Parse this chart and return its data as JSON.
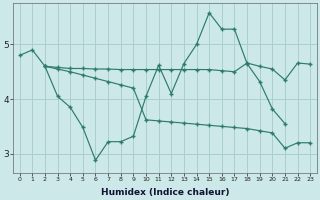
{
  "background_color": "#cce8e8",
  "grid_color": "#aacfcf",
  "line_color": "#2d7b6e",
  "line1_x": [
    0,
    1,
    2,
    3,
    4,
    5,
    6,
    7,
    8,
    9,
    10,
    11,
    12,
    13,
    14,
    15,
    16,
    17,
    18,
    19,
    20,
    21
  ],
  "line1_y": [
    4.8,
    4.9,
    4.6,
    4.05,
    3.85,
    3.48,
    2.88,
    3.22,
    3.22,
    3.32,
    4.05,
    4.62,
    4.1,
    4.65,
    5.0,
    5.58,
    5.28,
    5.28,
    4.65,
    4.32,
    3.82,
    3.55
  ],
  "line2_x": [
    2,
    3,
    4,
    5,
    6,
    7,
    8,
    9,
    10,
    11,
    12,
    13,
    14,
    15,
    16,
    17,
    18,
    19,
    20,
    21,
    22,
    23
  ],
  "line2_y": [
    4.6,
    4.58,
    4.56,
    4.56,
    4.55,
    4.55,
    4.54,
    4.54,
    4.54,
    4.54,
    4.54,
    4.54,
    4.54,
    4.54,
    4.52,
    4.5,
    4.66,
    4.6,
    4.55,
    4.35,
    4.66,
    4.64
  ],
  "line3_x": [
    2,
    3,
    4,
    5,
    6,
    7,
    8,
    9,
    10,
    11,
    12,
    13,
    14,
    15,
    16,
    17,
    18,
    19,
    20,
    21,
    22,
    23
  ],
  "line3_y": [
    4.6,
    4.55,
    4.5,
    4.44,
    4.38,
    4.32,
    4.26,
    4.2,
    3.62,
    3.6,
    3.58,
    3.56,
    3.54,
    3.52,
    3.5,
    3.48,
    3.46,
    3.42,
    3.38,
    3.1,
    3.2,
    3.2
  ],
  "xlabel": "Humidex (Indice chaleur)",
  "xlim": [
    -0.5,
    23.5
  ],
  "ylim": [
    2.65,
    5.75
  ],
  "yticks": [
    3,
    4,
    5
  ],
  "xticks": [
    0,
    1,
    2,
    3,
    4,
    5,
    6,
    7,
    8,
    9,
    10,
    11,
    12,
    13,
    14,
    15,
    16,
    17,
    18,
    19,
    20,
    21,
    22,
    23
  ]
}
